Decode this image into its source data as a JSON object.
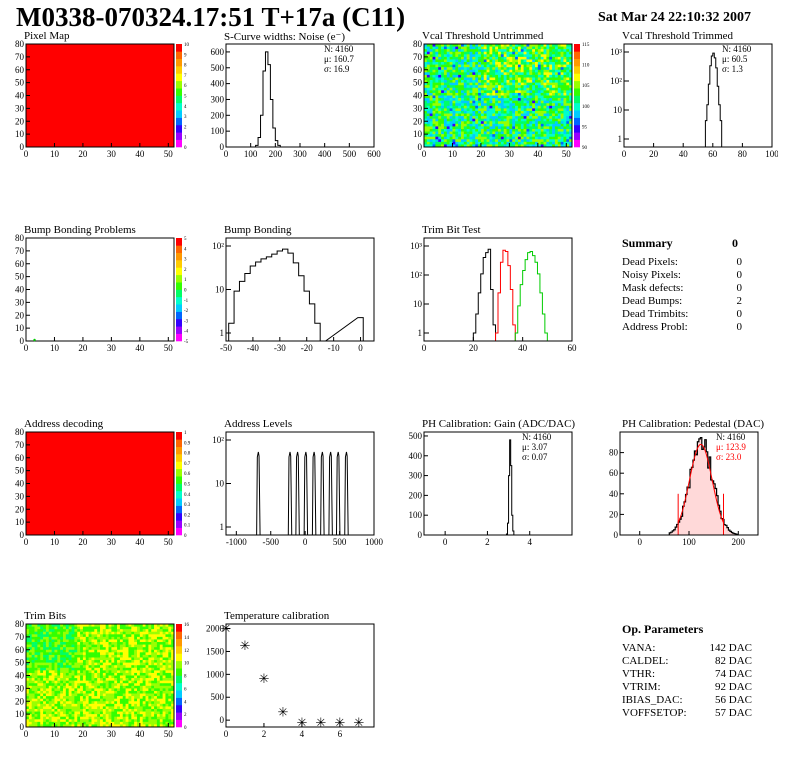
{
  "header": {
    "title": "M0338-070324.17:51 T+17a (C11)",
    "date": "Sat Mar 24 22:10:32 2007"
  },
  "summary": {
    "heading": "Summary",
    "total": "0",
    "rows": [
      {
        "label": "Dead Pixels:",
        "value": "0"
      },
      {
        "label": "Noisy Pixels:",
        "value": "0"
      },
      {
        "label": "Mask defects:",
        "value": "0"
      },
      {
        "label": "Dead Bumps:",
        "value": "2"
      },
      {
        "label": "Dead Trimbits:",
        "value": "0"
      },
      {
        "label": "Address Probl:",
        "value": "0"
      }
    ]
  },
  "op_parameters": {
    "heading": "Op. Parameters",
    "rows": [
      {
        "label": "VANA:",
        "value": "142 DAC"
      },
      {
        "label": "CALDEL:",
        "value": "82 DAC"
      },
      {
        "label": "VTHR:",
        "value": "74 DAC"
      },
      {
        "label": "VTRIM:",
        "value": "92 DAC"
      },
      {
        "label": "IBIAS_DAC:",
        "value": "56 DAC"
      },
      {
        "label": "VOFFSETOP:",
        "value": "57 DAC"
      }
    ]
  },
  "colors": {
    "red": "#ff0000",
    "green": "#00cc00",
    "black": "#000000"
  },
  "chart_data": [
    {
      "type": "heatmap",
      "title": "Pixel Map",
      "xlim": [
        0,
        52
      ],
      "ylim": [
        0,
        80
      ],
      "xticks": [
        0,
        10,
        20,
        30,
        40,
        50
      ],
      "yticks": [
        0,
        10,
        20,
        30,
        40,
        50,
        60,
        70,
        80
      ],
      "zscale": [
        "0",
        "1",
        "2",
        "3",
        "4",
        "5",
        "6",
        "7",
        "8",
        "9",
        "10"
      ],
      "fill": "uniform-max"
    },
    {
      "type": "histogram",
      "title": "S-Curve widths: Noise (e⁻)",
      "xlim": [
        0,
        600
      ],
      "ylim": [
        0,
        650
      ],
      "xticks": [
        0,
        100,
        200,
        300,
        400,
        500,
        600
      ],
      "yticks": [
        0,
        100,
        200,
        300,
        400,
        500,
        600
      ],
      "stats": [
        "N: 4160",
        "μ: 160.7",
        "σ: 16.9"
      ],
      "x": [
        120,
        130,
        140,
        150,
        160,
        170,
        180,
        190,
        200,
        210,
        220
      ],
      "values": [
        10,
        60,
        200,
        480,
        600,
        520,
        300,
        120,
        40,
        10,
        0
      ]
    },
    {
      "type": "heatmap",
      "title": "Vcal Threshold Untrimmed",
      "xlim": [
        0,
        52
      ],
      "ylim": [
        0,
        80
      ],
      "xticks": [
        0,
        10,
        20,
        30,
        40,
        50
      ],
      "yticks": [
        0,
        10,
        20,
        30,
        40,
        50,
        60,
        70,
        80
      ],
      "zscale": [
        "90",
        "95",
        "100",
        "105",
        "110",
        "115"
      ],
      "fill": "random"
    },
    {
      "type": "histogram",
      "title": "Vcal Threshold Trimmed",
      "log": true,
      "xlim": [
        0,
        100
      ],
      "xticks": [
        0,
        20,
        40,
        60,
        80,
        100
      ],
      "yticks": [
        "1",
        "10",
        "10²",
        "10³"
      ],
      "stats": [
        "N: 4160",
        "μ: 60.5",
        "σ: 1.3"
      ],
      "x": [
        55,
        56,
        57,
        58,
        59,
        60,
        61,
        62,
        63,
        64,
        65,
        66
      ],
      "values": [
        5,
        20,
        120,
        600,
        1400,
        1800,
        1200,
        500,
        100,
        20,
        5,
        0
      ]
    },
    {
      "type": "heatmap",
      "title": "Bump Bonding Problems",
      "xlim": [
        0,
        52
      ],
      "ylim": [
        0,
        80
      ],
      "xticks": [
        0,
        10,
        20,
        30,
        40,
        50
      ],
      "yticks": [
        0,
        10,
        20,
        30,
        40,
        50,
        60,
        70,
        80
      ],
      "zscale": [
        "-5",
        "-4",
        "-3",
        "-2",
        "-1",
        "0",
        "1",
        "2",
        "3",
        "4",
        "5"
      ],
      "fill": "empty"
    },
    {
      "type": "histogram",
      "title": "Bump Bonding",
      "log": true,
      "xlim": [
        -50,
        5
      ],
      "xticks": [
        -50,
        -40,
        -30,
        -20,
        -10,
        0
      ],
      "yticks": [
        "1",
        "10",
        "10²"
      ],
      "x": [
        -49,
        -47,
        -45,
        -43,
        -41,
        -39,
        -37,
        -35,
        -33,
        -31,
        -29,
        -27,
        -25,
        -23,
        -21,
        -19,
        -17,
        -15,
        -1
      ],
      "values": [
        2,
        20,
        40,
        70,
        120,
        160,
        200,
        230,
        280,
        350,
        400,
        300,
        150,
        60,
        20,
        8,
        2,
        0,
        3
      ]
    },
    {
      "type": "histogram",
      "title": "Trim Bit Test",
      "log": true,
      "xlim": [
        0,
        60
      ],
      "xticks": [
        0,
        20,
        40,
        60
      ],
      "yticks": [
        "1",
        "10",
        "10²",
        "10³"
      ],
      "series": [
        {
          "x": [
            20,
            21,
            22,
            23,
            24,
            25,
            26,
            27,
            28
          ],
          "values": [
            1,
            5,
            30,
            150,
            600,
            900,
            1200,
            40,
            2
          ]
        },
        {
          "x": [
            29,
            30,
            31,
            32,
            33,
            34,
            35,
            36
          ],
          "values": [
            1,
            30,
            400,
            1100,
            1000,
            300,
            40,
            2
          ]
        },
        {
          "x": [
            37,
            38,
            39,
            40,
            41,
            42,
            43,
            44,
            45,
            46,
            47,
            48,
            49
          ],
          "values": [
            1,
            10,
            60,
            200,
            500,
            900,
            1000,
            700,
            400,
            150,
            30,
            5,
            1
          ]
        }
      ]
    },
    {
      "type": "heatmap",
      "title": "Address decoding",
      "xlim": [
        0,
        52
      ],
      "ylim": [
        0,
        80
      ],
      "xticks": [
        0,
        10,
        20,
        30,
        40,
        50
      ],
      "yticks": [
        0,
        10,
        20,
        30,
        40,
        50,
        60,
        70,
        80
      ],
      "zscale": [
        "0",
        "0.1",
        "0.2",
        "0.3",
        "0.4",
        "0.5",
        "0.6",
        "0.7",
        "0.8",
        "0.9",
        "1"
      ],
      "fill": "uniform-max"
    },
    {
      "type": "histogram",
      "title": "Address Levels",
      "log": true,
      "xlim": [
        -1150,
        1000
      ],
      "xticks": [
        -1000,
        -500,
        0,
        500,
        1000
      ],
      "yticks": [
        "1",
        "10",
        "10²"
      ],
      "peaks": [
        -680,
        -220,
        -110,
        10,
        130,
        250,
        370,
        480,
        600
      ]
    },
    {
      "type": "histogram",
      "title": "PH Calibration: Gain (ADC/DAC)",
      "xlim": [
        -1,
        6
      ],
      "ylim": [
        0,
        520
      ],
      "xticks": [
        0,
        2,
        4
      ],
      "yticks": [
        0,
        100,
        200,
        300,
        400,
        500
      ],
      "stats": [
        "N: 4160",
        "μ: 3.07",
        "σ: 0.07"
      ],
      "x": [
        2.9,
        2.95,
        3.0,
        3.05,
        3.1,
        3.15,
        3.2,
        3.25
      ],
      "values": [
        5,
        60,
        300,
        480,
        350,
        100,
        20,
        0
      ]
    },
    {
      "type": "histogram",
      "title": "PH Calibration: Pedestal (DAC)",
      "xlim": [
        -40,
        240
      ],
      "ylim": [
        0,
        100
      ],
      "xticks": [
        0,
        100,
        200
      ],
      "yticks": [
        0,
        20,
        40,
        60,
        80
      ],
      "stats": [
        "N: 4160",
        "μ: 123.9",
        "σ: 23.0"
      ]
    },
    {
      "type": "heatmap",
      "title": "Trim Bits",
      "xlim": [
        0,
        52
      ],
      "ylim": [
        0,
        80
      ],
      "xticks": [
        0,
        10,
        20,
        30,
        40,
        50
      ],
      "yticks": [
        0,
        10,
        20,
        30,
        40,
        50,
        60,
        70,
        80
      ],
      "zscale": [
        "0",
        "2",
        "4",
        "6",
        "8",
        "10",
        "12",
        "14",
        "16"
      ],
      "fill": "random-trim"
    },
    {
      "type": "scatter",
      "title": "Temperature calibration",
      "xlim": [
        0,
        7.8
      ],
      "ylim": [
        -150,
        2100
      ],
      "xticks": [
        0,
        2,
        4,
        6
      ],
      "yticks": [
        0,
        500,
        1000,
        1500,
        2000
      ],
      "x": [
        0,
        1,
        2,
        3,
        4,
        5,
        6,
        7
      ],
      "values": [
        2030,
        1660,
        940,
        210,
        -20,
        -20,
        -20,
        -20
      ]
    }
  ]
}
